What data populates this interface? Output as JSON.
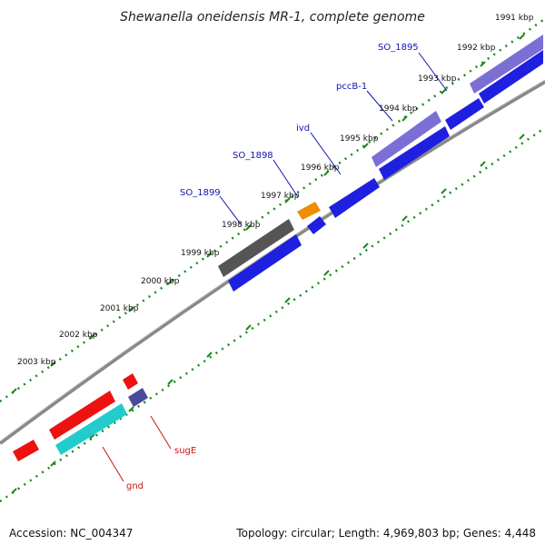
{
  "title": "Shewanella oneidensis MR-1, complete genome",
  "footer": {
    "accession": "Accession: NC_004347",
    "summary": "Topology: circular; Length: 4,969,803 bp; Genes: 4,448"
  },
  "colors": {
    "backbone": "#888888",
    "dots": "#1a8a1a",
    "blue": "#1f1fe0",
    "purple": "#7b6fd6",
    "red": "#ee1111",
    "cyan": "#22cccc",
    "orange": "#f08c00",
    "gray": "#555555",
    "navy_small": "#4a4a9a",
    "label_blue": "#1212b0",
    "label_red": "#cc1111"
  },
  "ticks": [
    {
      "label": "1991 kbp"
    },
    {
      "label": "1992 kbp"
    },
    {
      "label": "1993 kbp"
    },
    {
      "label": "1994 kbp"
    },
    {
      "label": "1995 kbp"
    },
    {
      "label": "1996 kbp"
    },
    {
      "label": "1997 kbp"
    },
    {
      "label": "1998 kbp"
    },
    {
      "label": "1999 kbp"
    },
    {
      "label": "2000 kbp"
    },
    {
      "label": "2001 kbp"
    },
    {
      "label": "2002 kbp"
    },
    {
      "label": "2003 kbp"
    }
  ],
  "gene_labels": [
    {
      "name": "SO_1895",
      "color": "blue"
    },
    {
      "name": "pccB-1",
      "color": "blue"
    },
    {
      "name": "ivd",
      "color": "blue"
    },
    {
      "name": "SO_1898",
      "color": "blue"
    },
    {
      "name": "SO_1899",
      "color": "blue"
    },
    {
      "name": "sugE",
      "color": "red"
    },
    {
      "name": "gnd",
      "color": "red"
    }
  ]
}
